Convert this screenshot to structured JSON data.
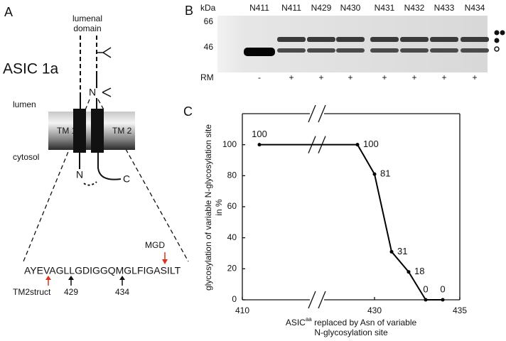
{
  "panel_a": {
    "label": "A",
    "title": "ASIC 1a",
    "lumenal_domain": [
      "lumenal",
      "domain"
    ],
    "lumen": "lumen",
    "cytosol": "cytosol",
    "tm1": "TM 1",
    "tm2": "TM 2",
    "n_glyco": "N",
    "n_term": "N",
    "c_term": "C",
    "sequence": "AYEVAGLLGDIGGQMGLFIGASILT",
    "mgd": "MGD",
    "markers": [
      "TM2struct",
      "429",
      "434"
    ]
  },
  "panel_b": {
    "label": "B",
    "unit": "kDa",
    "mw": [
      "66",
      "46"
    ],
    "lanes": [
      "N411",
      "N411",
      "N429",
      "N430",
      "N431",
      "N432",
      "N433",
      "N434"
    ],
    "rm_label": "RM",
    "rm": [
      "-",
      "+",
      "+",
      "+",
      "+",
      "+",
      "+",
      "+"
    ]
  },
  "chart_data": {
    "type": "line",
    "panel_label": "C",
    "ylabel": [
      "glycosylation of variable N-glycosylation site",
      "in %"
    ],
    "xlabel": [
      "ASIC",
      "aa",
      " replaced by Asn of variable",
      "N-glycosylation site"
    ],
    "x": [
      411,
      429,
      430,
      431,
      432,
      433,
      434
    ],
    "values": [
      100,
      100,
      81,
      31,
      18,
      0,
      0
    ],
    "color": "#000000",
    "xlim": [
      410,
      435
    ],
    "xticks": [
      410,
      430,
      435
    ],
    "xbreak": [
      413,
      428
    ],
    "ylim": [
      0,
      120
    ],
    "yticks": [
      0,
      20,
      40,
      60,
      80,
      100
    ]
  }
}
